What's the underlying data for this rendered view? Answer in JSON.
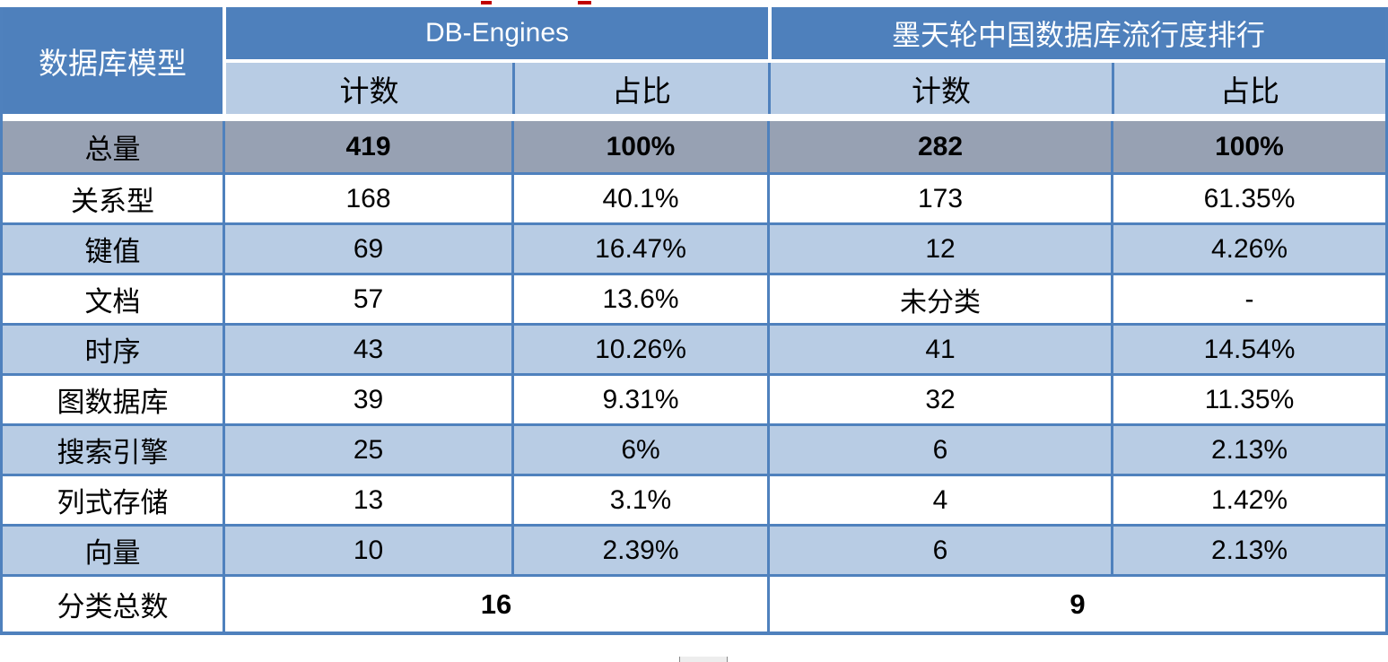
{
  "table": {
    "corner_header": "数据库模型",
    "groups": [
      {
        "label": "DB-Engines"
      },
      {
        "label": "墨天轮中国数据库流行度排行"
      }
    ],
    "sub_headers": {
      "c1": "计数",
      "c2": "占比",
      "c3": "计数",
      "c4": "占比"
    },
    "total_row": {
      "label": "总量",
      "v1": "419",
      "v2": "100%",
      "v3": "282",
      "v4": "100%"
    },
    "rows": [
      {
        "label": "关系型",
        "v1": "168",
        "v2": "40.1%",
        "v3": "173",
        "v4": "61.35%"
      },
      {
        "label": "键值",
        "v1": "69",
        "v2": "16.47%",
        "v3": "12",
        "v4": "4.26%"
      },
      {
        "label": "文档",
        "v1": "57",
        "v2": "13.6%",
        "v3": "未分类",
        "v4": "-"
      },
      {
        "label": "时序",
        "v1": "43",
        "v2": "10.26%",
        "v3": "41",
        "v4": "14.54%"
      },
      {
        "label": "图数据库",
        "v1": "39",
        "v2": "9.31%",
        "v3": "32",
        "v4": "11.35%"
      },
      {
        "label": "搜索引擎",
        "v1": "25",
        "v2": "6%",
        "v3": "6",
        "v4": "2.13%"
      },
      {
        "label": "列式存储",
        "v1": "13",
        "v2": "3.1%",
        "v3": "4",
        "v4": "1.42%"
      },
      {
        "label": "向量",
        "v1": "10",
        "v2": "2.39%",
        "v3": "6",
        "v4": "2.13%"
      }
    ],
    "footer_row": {
      "label": "分类总数",
      "v1": "16",
      "v2": "9"
    }
  },
  "colors": {
    "header_blue": "#4e80bc",
    "band_blue": "#b8cce4",
    "total_gray": "#97a1b3",
    "border_blue": "#4f81bd",
    "artifact_red": "#c00000"
  }
}
